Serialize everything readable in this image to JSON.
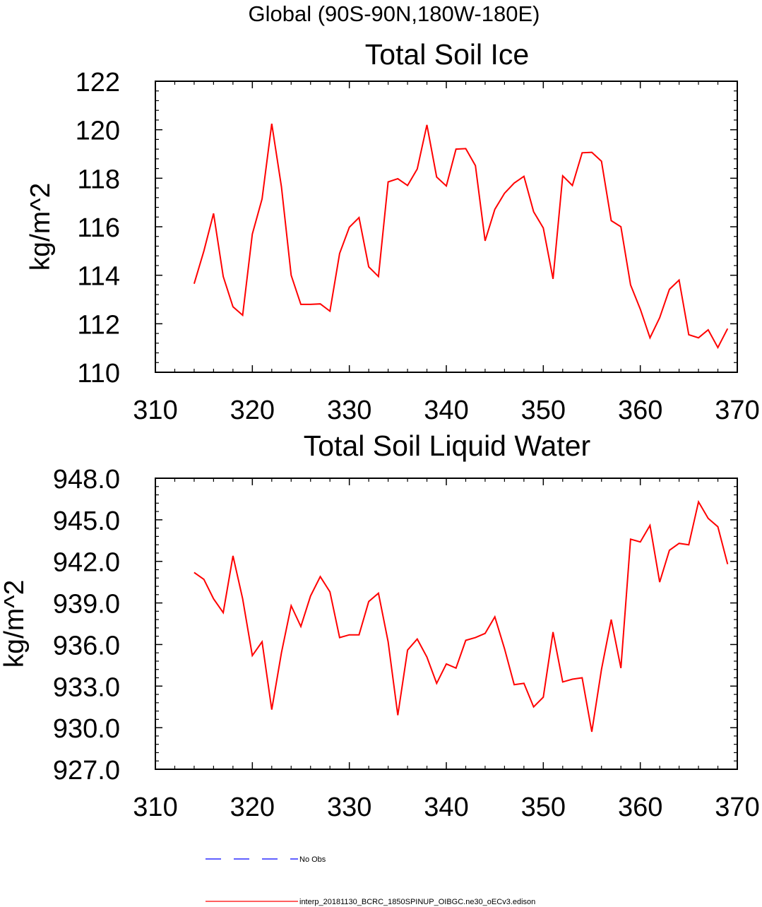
{
  "page_title": "Global (90S-90N,180W-180E)",
  "legend": {
    "items": [
      {
        "label": "No Obs",
        "color": "#0000ff",
        "style": "dashed"
      },
      {
        "label": "interp_20181130_BCRC_1850SPINUP_OIBGC.ne30_oECv3.edison",
        "color": "#ff0000",
        "style": "solid"
      }
    ]
  },
  "chart_data": [
    {
      "type": "line",
      "title": "Total Soil Ice",
      "xlabel": "",
      "ylabel": "kg/m^2",
      "xlim": [
        310,
        370
      ],
      "ylim": [
        110,
        122
      ],
      "x_ticks": [
        310,
        320,
        330,
        340,
        350,
        360,
        370
      ],
      "x_tick_labels": [
        "310",
        "320",
        "330",
        "340",
        "350",
        "360",
        "370"
      ],
      "y_ticks": [
        110,
        112,
        114,
        116,
        118,
        120,
        122
      ],
      "y_tick_labels": [
        "110",
        "112",
        "114",
        "116",
        "118",
        "120",
        "122"
      ],
      "x_minor_step": 2,
      "y_minor_step": 0.4,
      "grid": false,
      "series": [
        {
          "name": "interp_20181130_BCRC_1850SPINUP_OIBGC.ne30_oECv3.edison",
          "color": "#ff0000",
          "x": [
            314,
            315,
            316,
            317,
            318,
            319,
            320,
            321,
            322,
            323,
            324,
            325,
            326,
            327,
            328,
            329,
            330,
            331,
            332,
            333,
            334,
            335,
            336,
            337,
            338,
            339,
            340,
            341,
            342,
            343,
            344,
            345,
            346,
            347,
            348,
            349,
            350,
            351,
            352,
            353,
            354,
            355,
            356,
            357,
            358,
            359,
            360,
            361,
            362,
            363,
            364,
            365,
            366,
            367,
            368,
            369
          ],
          "values": [
            113.65,
            115.0,
            116.55,
            113.95,
            112.7,
            112.35,
            115.7,
            117.15,
            120.25,
            117.65,
            114.0,
            112.8,
            112.8,
            112.82,
            112.52,
            114.9,
            115.98,
            116.38,
            114.35,
            113.95,
            117.85,
            117.98,
            117.7,
            118.38,
            120.2,
            118.05,
            117.68,
            119.2,
            119.22,
            118.52,
            115.42,
            116.72,
            117.38,
            117.8,
            118.08,
            116.62,
            115.95,
            113.85,
            118.1,
            117.7,
            119.05,
            119.07,
            118.7,
            116.25,
            116.0,
            113.6,
            112.6,
            111.42,
            112.25,
            113.42,
            113.8,
            111.55,
            111.42,
            111.75,
            111.02,
            111.8
          ]
        }
      ]
    },
    {
      "type": "line",
      "title": "Total Soil Liquid Water",
      "xlabel": "",
      "ylabel": "kg/m^2",
      "xlim": [
        310,
        370
      ],
      "ylim": [
        927,
        948
      ],
      "x_ticks": [
        310,
        320,
        330,
        340,
        350,
        360,
        370
      ],
      "x_tick_labels": [
        "310",
        "320",
        "330",
        "340",
        "350",
        "360",
        "370"
      ],
      "y_ticks": [
        927,
        930,
        933,
        936,
        939,
        942,
        945,
        948
      ],
      "y_tick_labels": [
        "927.0",
        "930.0",
        "933.0",
        "936.0",
        "939.0",
        "942.0",
        "945.0",
        "948.0"
      ],
      "x_minor_step": 2,
      "y_minor_step": 0.6,
      "grid": false,
      "series": [
        {
          "name": "interp_20181130_BCRC_1850SPINUP_OIBGC.ne30_oECv3.edison",
          "color": "#ff0000",
          "x": [
            314,
            315,
            316,
            317,
            318,
            319,
            320,
            321,
            322,
            323,
            324,
            325,
            326,
            327,
            328,
            329,
            330,
            331,
            332,
            333,
            334,
            335,
            336,
            337,
            338,
            339,
            340,
            341,
            342,
            343,
            344,
            345,
            346,
            347,
            348,
            349,
            350,
            351,
            352,
            353,
            354,
            355,
            356,
            357,
            358,
            359,
            360,
            361,
            362,
            363,
            364,
            365,
            366,
            367,
            368,
            369
          ],
          "values": [
            941.2,
            940.7,
            939.3,
            938.3,
            942.4,
            939.3,
            935.2,
            936.2,
            931.3,
            935.4,
            938.8,
            937.3,
            939.5,
            940.9,
            939.8,
            936.5,
            936.7,
            936.7,
            939.1,
            939.7,
            936.2,
            930.9,
            935.6,
            936.4,
            935.1,
            933.2,
            934.6,
            934.3,
            936.3,
            936.5,
            936.8,
            938.0,
            935.7,
            933.1,
            933.2,
            931.5,
            932.2,
            936.9,
            933.3,
            933.5,
            933.6,
            929.7,
            934.2,
            937.8,
            934.3,
            943.6,
            943.4,
            944.6,
            940.5,
            942.8,
            943.3,
            943.2,
            946.3,
            945.1,
            944.5,
            941.8
          ]
        }
      ]
    }
  ]
}
